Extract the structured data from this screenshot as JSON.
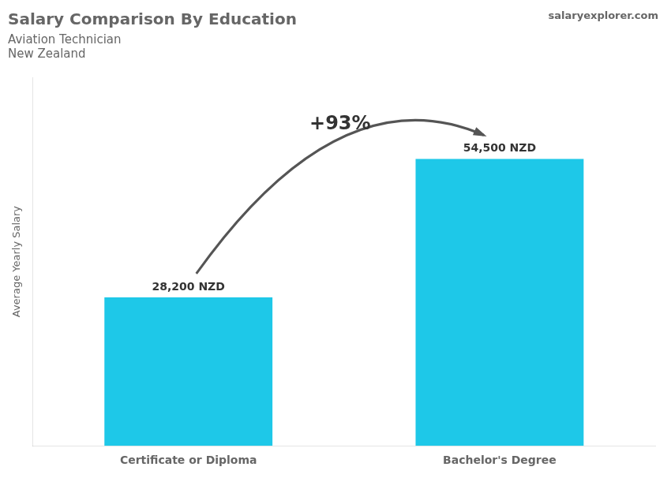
{
  "chart_data": {
    "type": "bar",
    "title": "Salary Comparison By Education",
    "subtitle": [
      "Aviation Technician",
      "New Zealand"
    ],
    "ylabel": "Average Yearly Salary",
    "annotations": [
      "+93%",
      "salaryexplorer.com"
    ],
    "categories": [
      "Certificate or Diploma",
      "Bachelor's Degree"
    ],
    "values": [
      28200,
      54500
    ],
    "value_labels": [
      "28,200 NZD",
      "54,500 NZD"
    ],
    "data_labels": true,
    "color": "#1EC8E8",
    "ylim": [
      0,
      70000
    ],
    "tick_labels": "x",
    "grid": false
  }
}
